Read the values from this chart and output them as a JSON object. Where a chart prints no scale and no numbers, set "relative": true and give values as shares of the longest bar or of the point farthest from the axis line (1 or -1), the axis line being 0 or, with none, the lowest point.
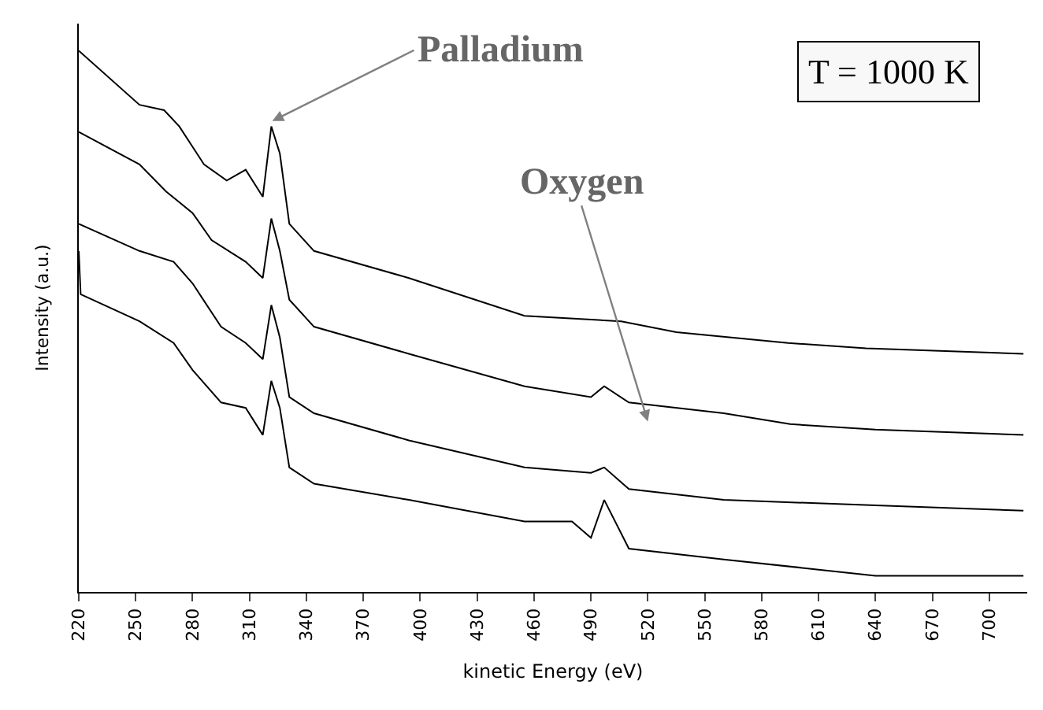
{
  "chart_data": {
    "type": "line",
    "relative": true,
    "xlabel": "kinetic Energy (eV)",
    "ylabel": "Intensity (a.u.)",
    "xlim": [
      220,
      720
    ],
    "xticks": [
      220,
      250,
      280,
      310,
      340,
      370,
      400,
      430,
      460,
      490,
      520,
      550,
      580,
      610,
      640,
      670,
      700
    ],
    "marker": "none",
    "line_style": "solid",
    "annotations": [
      {
        "text": "Palladium",
        "x": 322,
        "y": 0.87
      },
      "Oxygen",
      "T = 1000 K"
    ],
    "series": [
      {
        "color": "#000000",
        "x": [
          220,
          252,
          265,
          273,
          286,
          298,
          308,
          317,
          321.5,
          326,
          331,
          344,
          394,
          455,
          506,
          535,
          594,
          635,
          718
        ],
        "values": [
          1.0,
          0.9,
          0.89,
          0.86,
          0.79,
          0.76,
          0.78,
          0.73,
          0.86,
          0.81,
          0.68,
          0.63,
          0.58,
          0.51,
          0.5,
          0.48,
          0.46,
          0.45,
          0.44
        ]
      },
      {
        "color": "#000000",
        "x": [
          220,
          252,
          266,
          280,
          290,
          308,
          317,
          321.5,
          326,
          331,
          344,
          394,
          455,
          490,
          497,
          510,
          560,
          595,
          640,
          718
        ],
        "values": [
          0.85,
          0.79,
          0.74,
          0.7,
          0.65,
          0.61,
          0.58,
          0.69,
          0.63,
          0.54,
          0.49,
          0.44,
          0.38,
          0.36,
          0.38,
          0.35,
          0.33,
          0.31,
          0.3,
          0.29
        ]
      },
      {
        "color": "#000000",
        "x": [
          220,
          252,
          270,
          280,
          295,
          308,
          317,
          321.5,
          326,
          331,
          344,
          394,
          455,
          490,
          497,
          510,
          560,
          640,
          718
        ],
        "values": [
          0.68,
          0.63,
          0.61,
          0.57,
          0.49,
          0.46,
          0.43,
          0.53,
          0.47,
          0.36,
          0.33,
          0.28,
          0.23,
          0.22,
          0.23,
          0.19,
          0.17,
          0.16,
          0.15
        ]
      },
      {
        "color": "#000000",
        "x": [
          220,
          221,
          252,
          270,
          280,
          295,
          308,
          317,
          321.5,
          326,
          331,
          344,
          394,
          455,
          480,
          490,
          497,
          510,
          560,
          640,
          718
        ],
        "values": [
          0.63,
          0.55,
          0.5,
          0.46,
          0.41,
          0.35,
          0.34,
          0.29,
          0.39,
          0.34,
          0.23,
          0.2,
          0.17,
          0.13,
          0.13,
          0.1,
          0.17,
          0.08,
          0.06,
          0.03,
          0.03
        ]
      }
    ]
  }
}
